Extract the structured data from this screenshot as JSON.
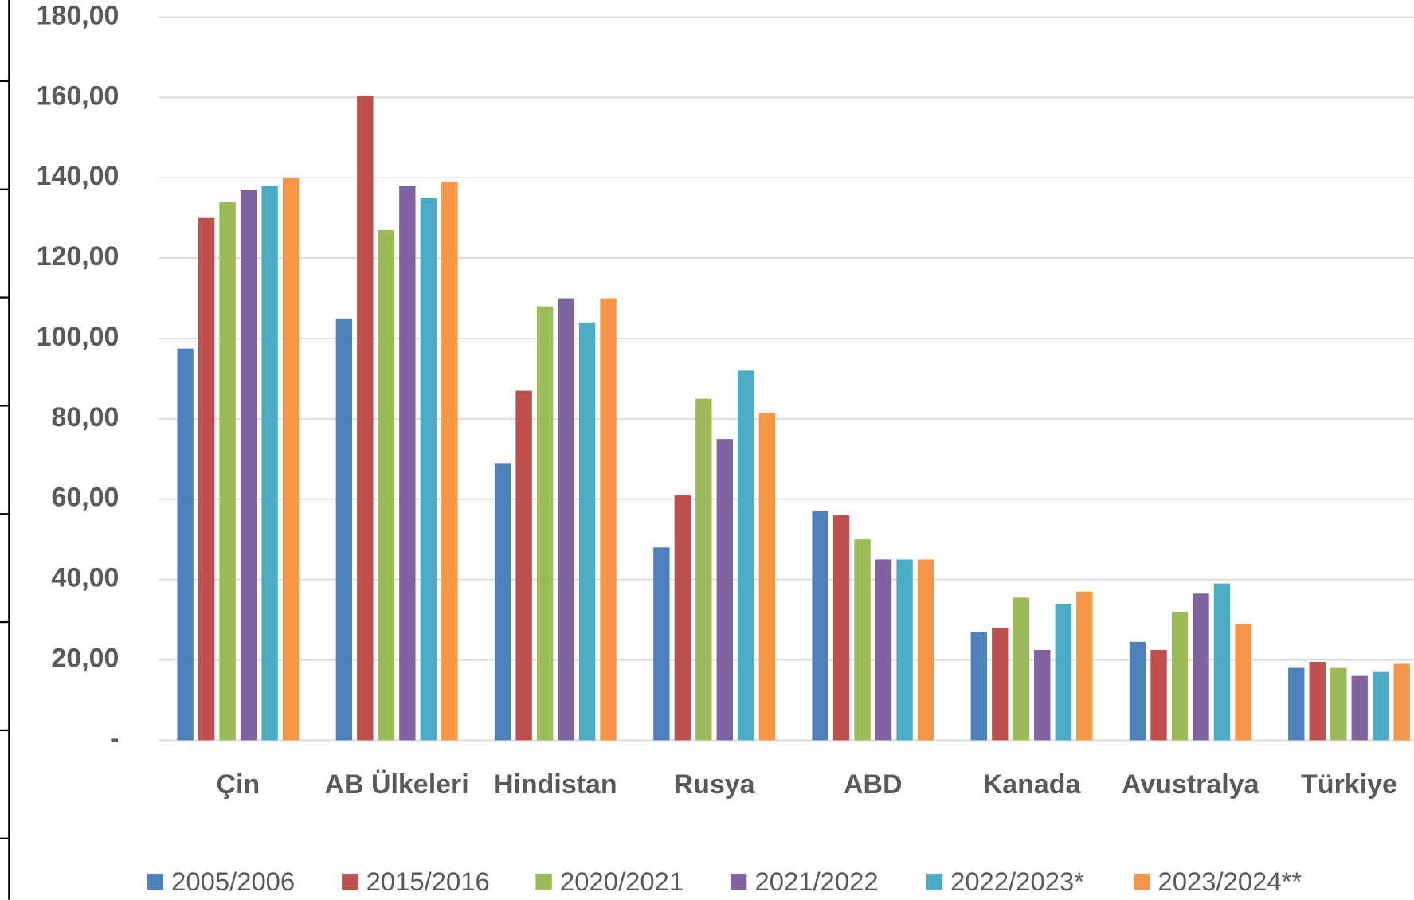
{
  "chart_data": {
    "type": "bar",
    "categories": [
      "Çin",
      "AB Ülkeleri",
      "Hindistan",
      "Rusya",
      "ABD",
      "Kanada",
      "Avustralya",
      "Türkiye"
    ],
    "series": [
      {
        "name": "2005/2006",
        "color": "#4f81bd",
        "values": [
          97.5,
          105,
          69,
          48,
          57,
          27,
          24.5,
          18
        ]
      },
      {
        "name": "2015/2016",
        "color": "#c0504d",
        "values": [
          130,
          160.5,
          87,
          61,
          56,
          28,
          22.5,
          19.5
        ]
      },
      {
        "name": "2020/2021",
        "color": "#9bbb59",
        "values": [
          134,
          127,
          108,
          85,
          50,
          35.5,
          32,
          18
        ]
      },
      {
        "name": "2021/2022",
        "color": "#8064a2",
        "values": [
          137,
          138,
          110,
          75,
          45,
          22.5,
          36.5,
          16
        ]
      },
      {
        "name": "2022/2023*",
        "color": "#4bacc6",
        "values": [
          138,
          135,
          104,
          92,
          45,
          34,
          39,
          17
        ]
      },
      {
        "name": "2023/2024**",
        "color": "#f79646",
        "values": [
          140,
          139,
          110,
          81.5,
          45,
          37,
          29,
          19
        ]
      }
    ],
    "ylim": [
      0,
      180
    ],
    "yticks": [
      {
        "value": 0,
        "label": "-"
      },
      {
        "value": 20,
        "label": "20,00"
      },
      {
        "value": 40,
        "label": "40,00"
      },
      {
        "value": 60,
        "label": "60,00"
      },
      {
        "value": 80,
        "label": "80,00"
      },
      {
        "value": 100,
        "label": "100,00"
      },
      {
        "value": 120,
        "label": "120,00"
      },
      {
        "value": 140,
        "label": "140,00"
      },
      {
        "value": 160,
        "label": "160,00"
      },
      {
        "value": 180,
        "label": "180,00"
      }
    ],
    "grid": true
  }
}
